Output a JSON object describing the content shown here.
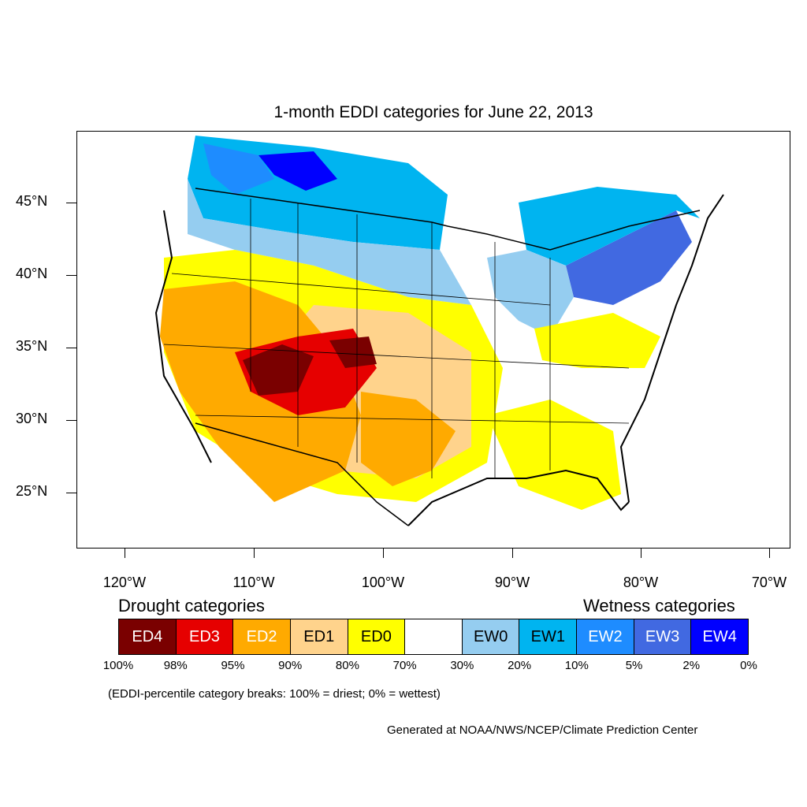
{
  "map": {
    "title": "1-month EDDI categories for June 22, 2013",
    "lat_labels": [
      "45°N",
      "40°N",
      "35°N",
      "30°N",
      "25°N"
    ],
    "lon_labels": [
      "120°W",
      "110°W",
      "100°W",
      "90°W",
      "80°W",
      "70°W"
    ],
    "colors": {
      "ED4": "#7a0000",
      "ED3": "#e60000",
      "ED2": "#ffaa00",
      "ED1": "#ffd38c",
      "ED0": "#ffff00",
      "neutral": "#ffffff",
      "EW0": "#95cdf0",
      "EW1": "#00b4f0",
      "EW2": "#1e8cff",
      "EW3": "#4169e1",
      "EW4": "#0000ff"
    }
  },
  "legend": {
    "drought_label": "Drought categories",
    "wetness_label": "Wetness categories",
    "boxes": [
      {
        "label": "ED4",
        "color": "#7a0000",
        "text_color": "#ffffff"
      },
      {
        "label": "ED3",
        "color": "#e60000",
        "text_color": "#ffffff"
      },
      {
        "label": "ED2",
        "color": "#ffaa00",
        "text_color": "#ffffff"
      },
      {
        "label": "ED1",
        "color": "#ffd38c",
        "text_color": "#000000"
      },
      {
        "label": "ED0",
        "color": "#ffff00",
        "text_color": "#000000"
      },
      {
        "label": "",
        "color": "#ffffff",
        "text_color": "#000000"
      },
      {
        "label": "EW0",
        "color": "#95cdf0",
        "text_color": "#000000"
      },
      {
        "label": "EW1",
        "color": "#00b4f0",
        "text_color": "#000000"
      },
      {
        "label": "EW2",
        "color": "#1e8cff",
        "text_color": "#ffffff"
      },
      {
        "label": "EW3",
        "color": "#4169e1",
        "text_color": "#ffffff"
      },
      {
        "label": "EW4",
        "color": "#0000ff",
        "text_color": "#ffffff"
      }
    ],
    "breaks": [
      "100%",
      "98%",
      "95%",
      "90%",
      "80%",
      "70%",
      "30%",
      "20%",
      "10%",
      "5%",
      "2%",
      "0%"
    ]
  },
  "note": "(EDDI-percentile category breaks: 100% = driest; 0% = wettest)",
  "credit": "Generated at NOAA/NWS/NCEP/Climate Prediction Center"
}
